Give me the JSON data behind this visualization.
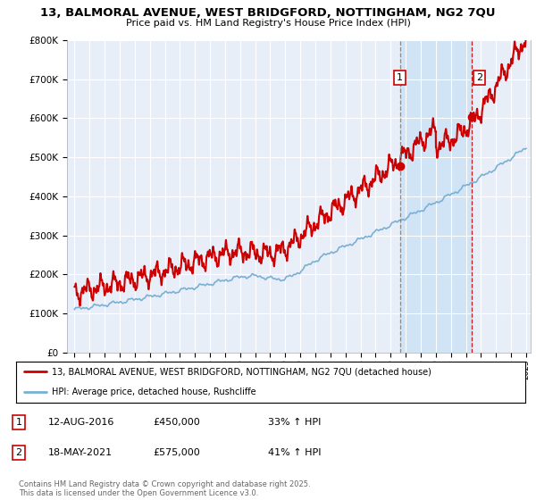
{
  "title_line1": "13, BALMORAL AVENUE, WEST BRIDGFORD, NOTTINGHAM, NG2 7QU",
  "title_line2": "Price paid vs. HM Land Registry's House Price Index (HPI)",
  "background_color": "#ffffff",
  "plot_bg_color": "#e8eef8",
  "hpi_color": "#7ab0d4",
  "price_color": "#cc0000",
  "shaded_region_color": "#d0e4f5",
  "marker1_date_x": 2016.62,
  "marker1_price": 450000,
  "marker2_date_x": 2021.37,
  "marker2_price": 575000,
  "legend_line1": "13, BALMORAL AVENUE, WEST BRIDGFORD, NOTTINGHAM, NG2 7QU (detached house)",
  "legend_line2": "HPI: Average price, detached house, Rushcliffe",
  "annotation1_label": "1",
  "annotation1_date": "12-AUG-2016",
  "annotation1_price": "£450,000",
  "annotation1_hpi": "33% ↑ HPI",
  "annotation2_label": "2",
  "annotation2_date": "18-MAY-2021",
  "annotation2_price": "£575,000",
  "annotation2_hpi": "41% ↑ HPI",
  "footer": "Contains HM Land Registry data © Crown copyright and database right 2025.\nThis data is licensed under the Open Government Licence v3.0.",
  "ylim_top": 800000,
  "ylim_bottom": 0,
  "xmin": 1995,
  "xmax": 2025
}
